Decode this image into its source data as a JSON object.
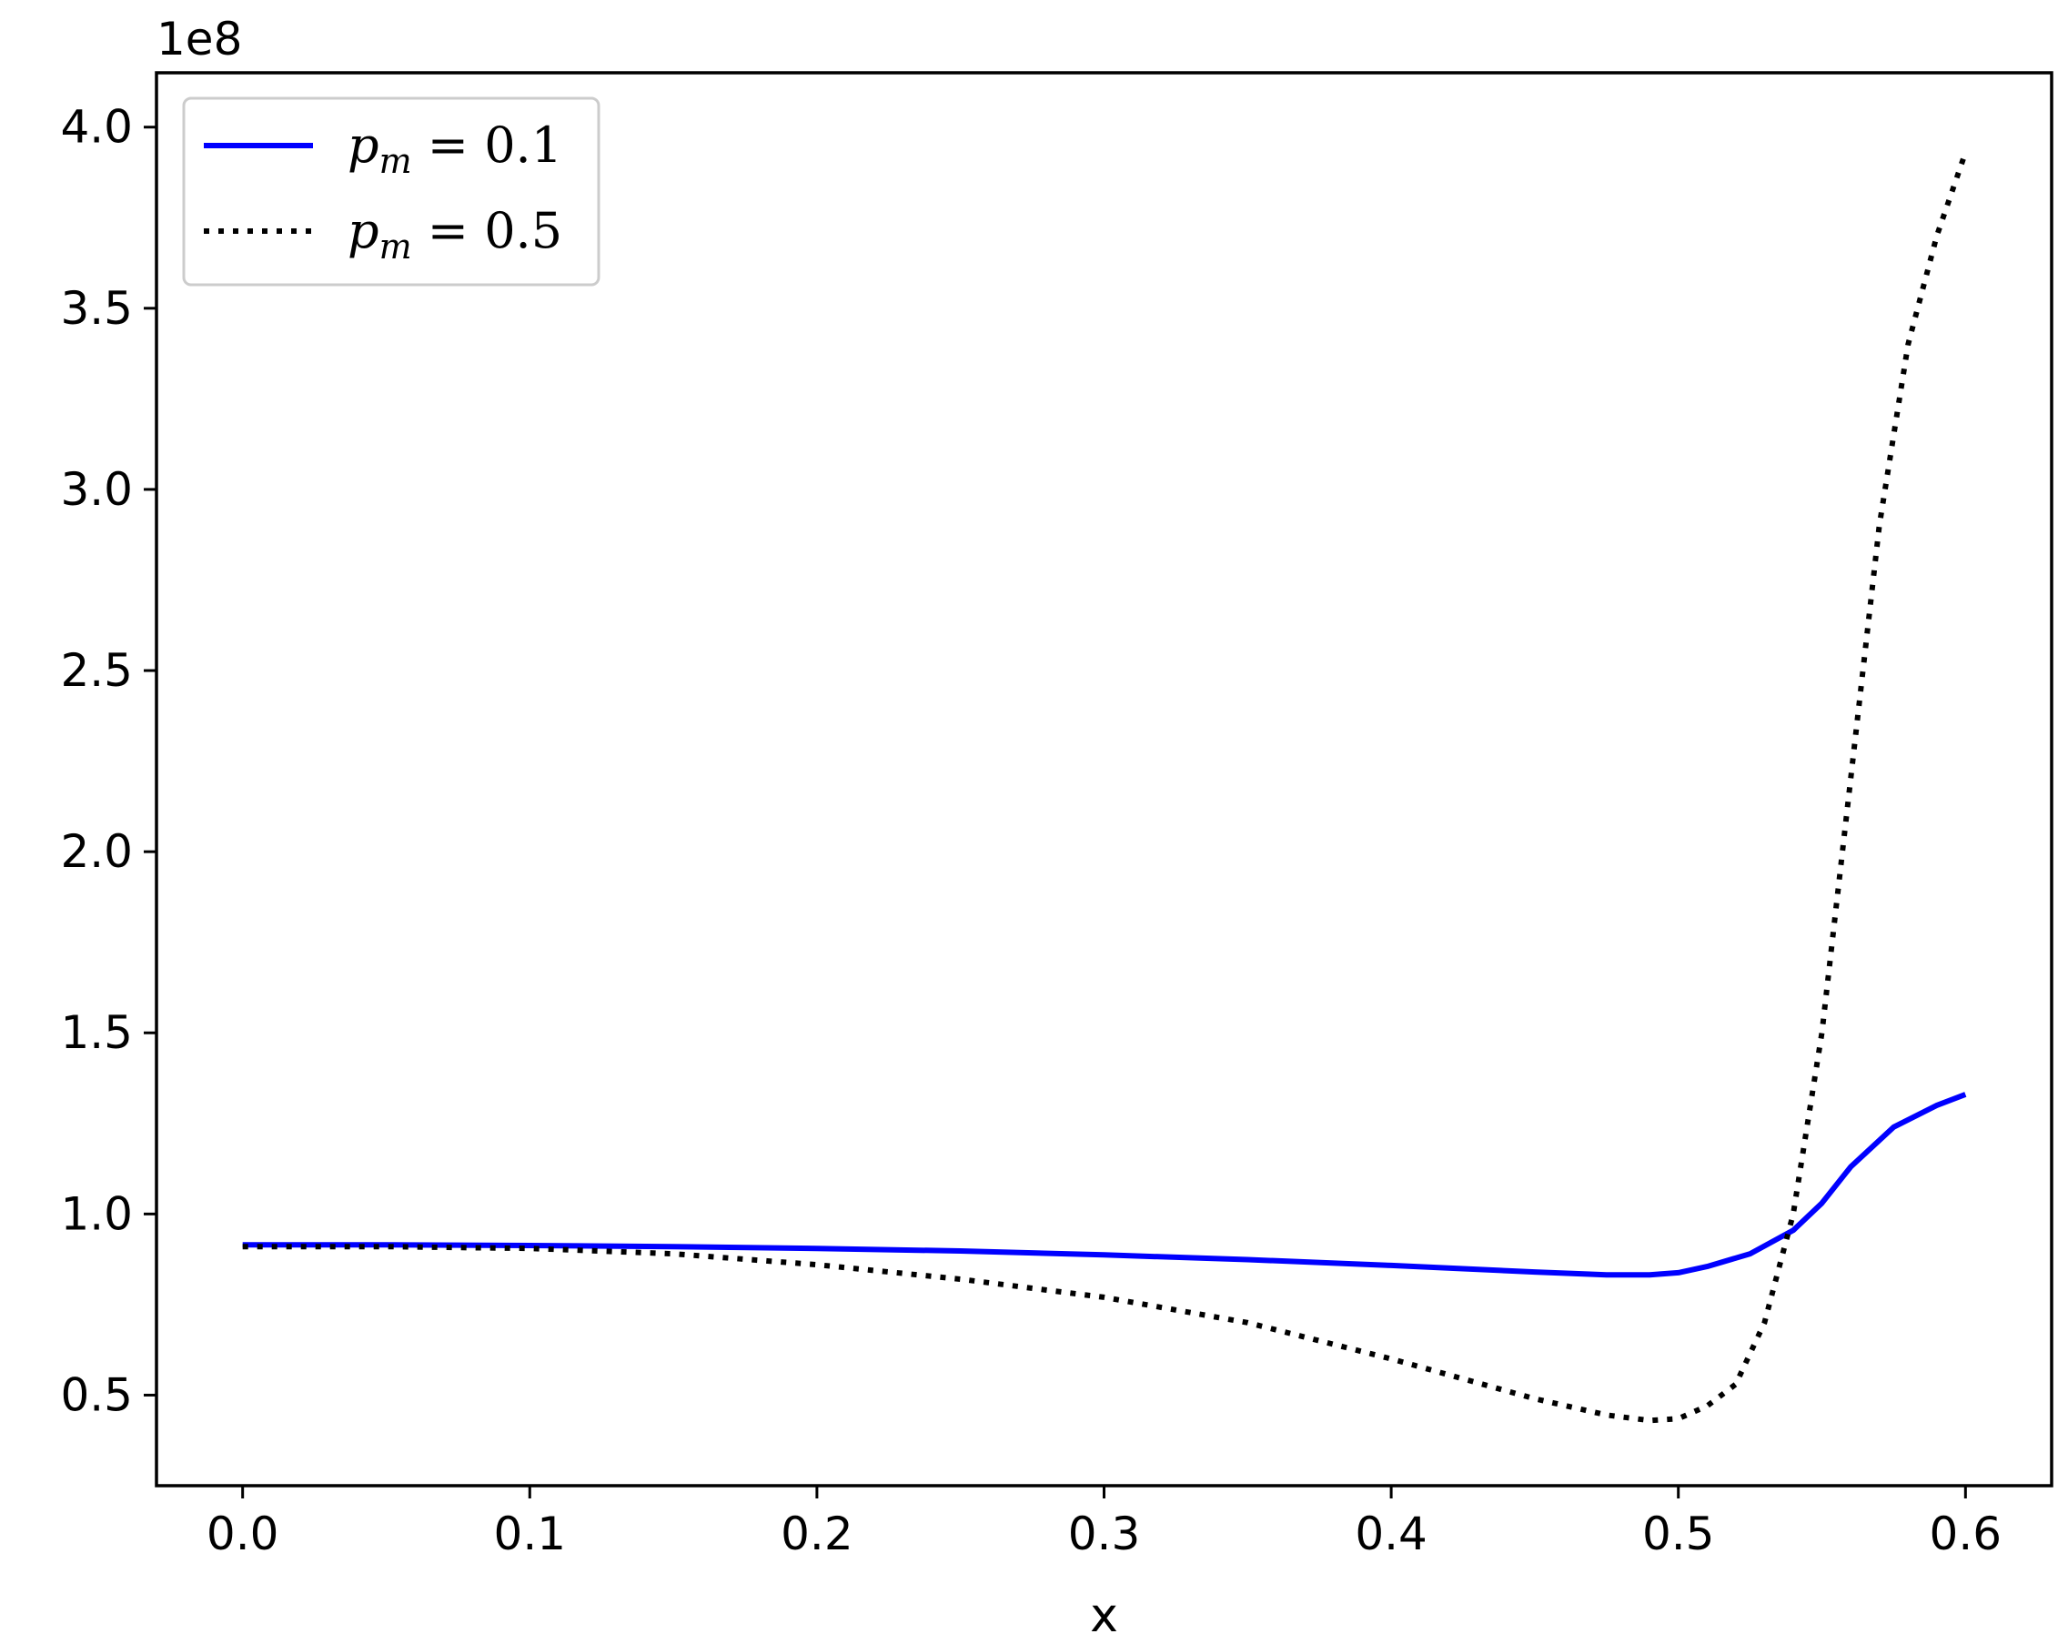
{
  "chart_data": {
    "type": "line",
    "title": "",
    "xlabel": "x",
    "ylabel": "",
    "y_offset_text": "1e8",
    "xlim": [
      -0.03,
      0.63
    ],
    "ylim": [
      0.25,
      4.15
    ],
    "y_scale_factor": 100000000,
    "x_ticks": [
      0.0,
      0.1,
      0.2,
      0.3,
      0.4,
      0.5,
      0.6
    ],
    "x_tick_labels": [
      "0.0",
      "0.1",
      "0.2",
      "0.3",
      "0.4",
      "0.5",
      "0.6"
    ],
    "y_ticks": [
      0.5,
      1.0,
      1.5,
      2.0,
      2.5,
      3.0,
      3.5,
      4.0
    ],
    "y_tick_labels": [
      "0.5",
      "1.0",
      "1.5",
      "2.0",
      "2.5",
      "3.0",
      "3.5",
      "4.0"
    ],
    "grid": false,
    "legend_position": "top-left",
    "series": [
      {
        "name": "p_m = 0.1",
        "legend_symbol": "p",
        "legend_sub": "m",
        "legend_rest": " = 0.1",
        "color": "#0000ff",
        "style": "solid",
        "x": [
          0.0,
          0.05,
          0.1,
          0.15,
          0.2,
          0.25,
          0.3,
          0.35,
          0.4,
          0.45,
          0.475,
          0.49,
          0.5,
          0.51,
          0.525,
          0.54,
          0.55,
          0.56,
          0.575,
          0.59,
          0.6
        ],
        "y": [
          0.915,
          0.915,
          0.913,
          0.91,
          0.905,
          0.898,
          0.887,
          0.874,
          0.858,
          0.84,
          0.832,
          0.832,
          0.838,
          0.855,
          0.89,
          0.955,
          1.03,
          1.13,
          1.24,
          1.3,
          1.33
        ]
      },
      {
        "name": "p_m = 0.5",
        "legend_symbol": "p",
        "legend_sub": "m",
        "legend_rest": " = 0.5",
        "color": "#000000",
        "style": "dotted",
        "x": [
          0.0,
          0.05,
          0.1,
          0.15,
          0.2,
          0.25,
          0.3,
          0.35,
          0.4,
          0.45,
          0.475,
          0.49,
          0.5,
          0.51,
          0.52,
          0.53,
          0.54,
          0.55,
          0.56,
          0.57,
          0.58,
          0.59,
          0.6
        ],
        "y": [
          0.91,
          0.91,
          0.905,
          0.89,
          0.86,
          0.82,
          0.77,
          0.7,
          0.6,
          0.49,
          0.445,
          0.43,
          0.435,
          0.47,
          0.53,
          0.7,
          1.0,
          1.5,
          2.2,
          2.9,
          3.4,
          3.7,
          3.93
        ]
      }
    ]
  }
}
